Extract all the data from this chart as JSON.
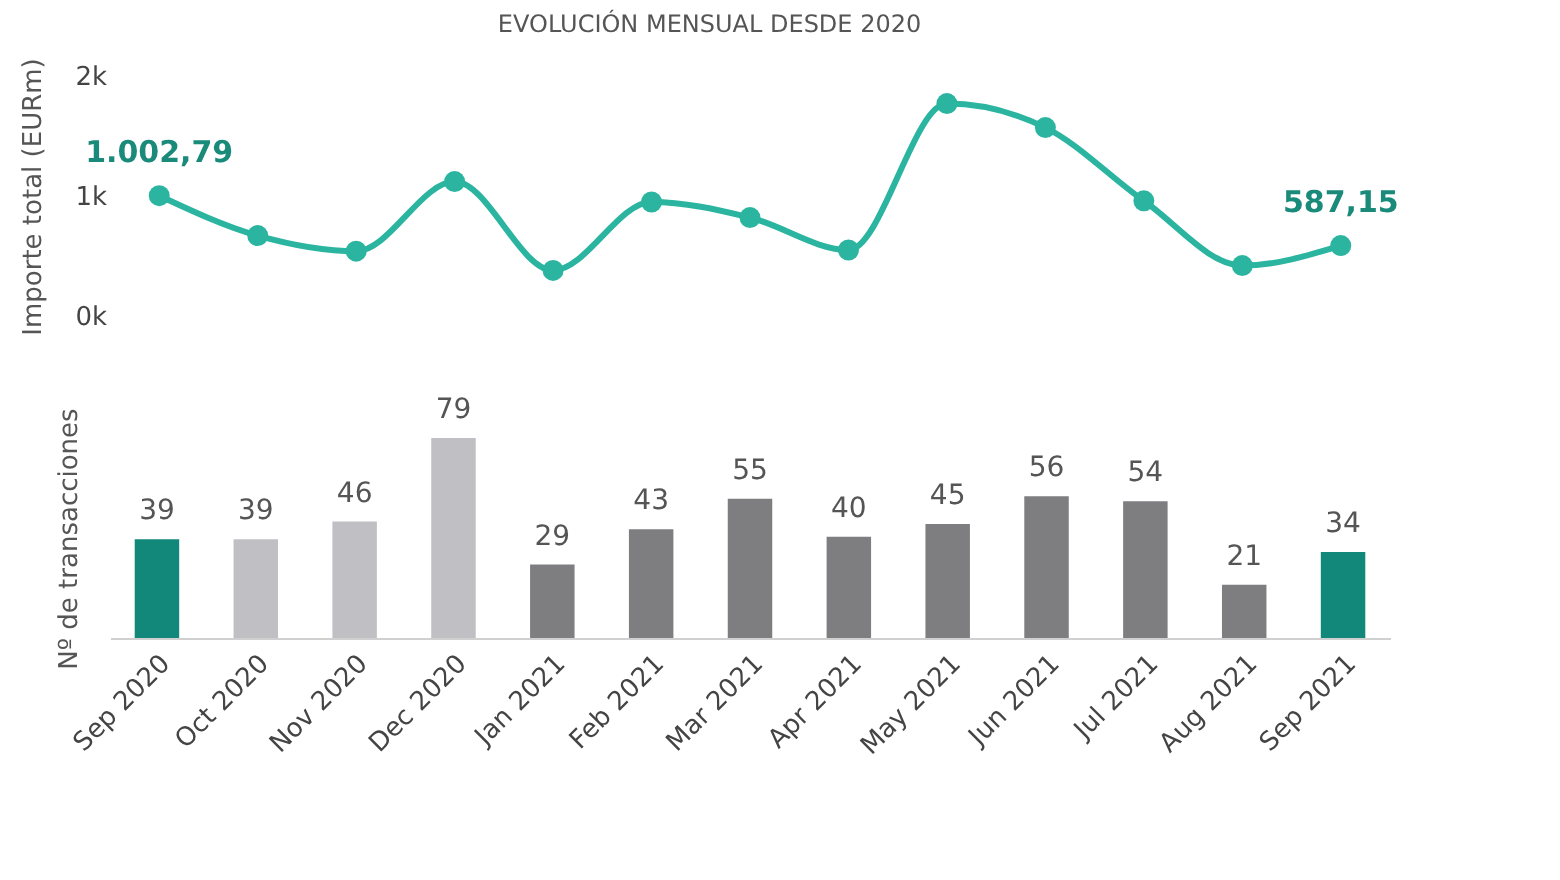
{
  "chart_data": [
    {
      "type": "line",
      "title": "EVOLUCIÓN MENSUAL DESDE 2020",
      "ylabel": "Importe total (EURm)",
      "series": [
        {
          "color": "#2bb5a0",
          "values": [
            1002.79,
            670,
            540,
            1120,
            380,
            950,
            820,
            550,
            1770,
            1570,
            960,
            420,
            587.15
          ],
          "value_labels": [
            "1.002,79",
            null,
            null,
            null,
            null,
            null,
            null,
            null,
            null,
            null,
            null,
            null,
            "587,15"
          ]
        }
      ],
      "ylim": [
        0,
        2000
      ],
      "yticks": [
        {
          "value": 0,
          "label": "0k"
        },
        {
          "value": 1000,
          "label": "1k"
        },
        {
          "value": 2000,
          "label": "2k"
        }
      ],
      "marker": "circle",
      "grid": false,
      "legend": false,
      "tick_labels": "y"
    },
    {
      "type": "bar",
      "ylabel": "Nº de transacciones",
      "categories": [
        "Sep 2020",
        "Oct 2020",
        "Nov 2020",
        "Dec 2020",
        "Jan 2021",
        "Feb 2021",
        "Mar 2021",
        "Apr 2021",
        "May 2021",
        "Jun 2021",
        "Jul 2021",
        "Aug 2021",
        "Sep 2021"
      ],
      "values": [
        39,
        39,
        46,
        79,
        29,
        43,
        55,
        40,
        45,
        56,
        54,
        21,
        34
      ],
      "colors": [
        "#12887a",
        "#c0bfc3",
        "#c0bfc3",
        "#c0bfc3",
        "#7e7d80",
        "#7e7d80",
        "#7e7d80",
        "#7e7d80",
        "#7e7d80",
        "#7e7d80",
        "#7e7d80",
        "#7e7d80",
        "#12887a"
      ],
      "ylim": [
        0,
        79
      ],
      "data_labels": true,
      "grid": false,
      "legend": false,
      "tick_labels": "x"
    }
  ]
}
